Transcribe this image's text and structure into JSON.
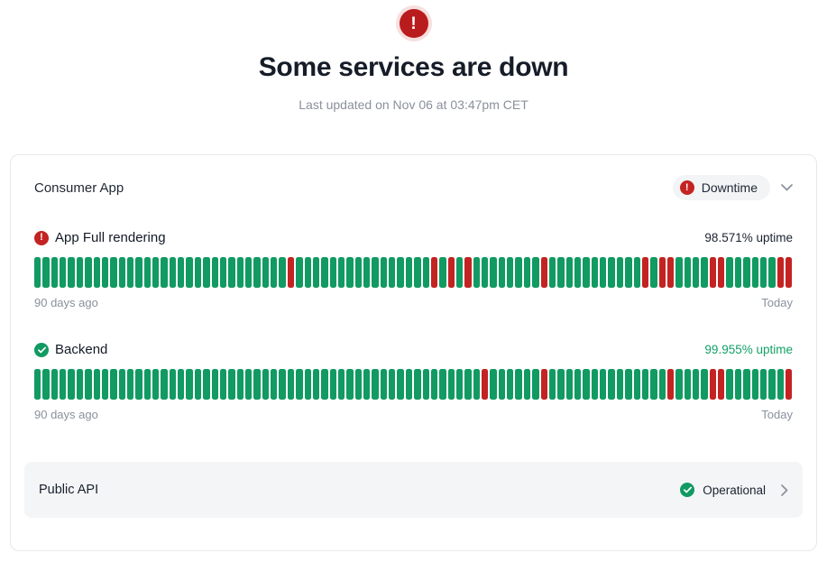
{
  "page": {
    "title": "Some services are down",
    "subtitle": "Last updated on Nov 06 at 03:47pm CET",
    "status_icon": "exclamation-circle-icon"
  },
  "colors": {
    "green": "#119a62",
    "green-text": "#12a165",
    "red": "#c32322",
    "alert-red": "#b91c1c",
    "alert-ring": "#f6e0df"
  },
  "card": {
    "group": {
      "name": "Consumer App",
      "badge_label": "Downtime",
      "badge_icon": "exclamation-circle-icon",
      "chevron": "chevron-down-icon"
    },
    "services": [
      {
        "name": "App Full rendering",
        "status": "down",
        "status_icon": "exclamation-circle-icon",
        "uptime_label": "98.571% uptime",
        "left_label": "90 days ago",
        "right_label": "Today",
        "days": 90,
        "down_indices": [
          30,
          47,
          49,
          51,
          60,
          72,
          74,
          75,
          80,
          81,
          88,
          89
        ]
      },
      {
        "name": "Backend",
        "status": "up",
        "status_icon": "check-circle-icon",
        "uptime_label": "99.955% uptime",
        "left_label": "90 days ago",
        "right_label": "Today",
        "days": 90,
        "down_indices": [
          53,
          60,
          75,
          80,
          81,
          89
        ]
      }
    ],
    "footer_service": {
      "name": "Public API",
      "status_label": "Operational",
      "status_icon": "check-circle-icon",
      "chevron": "chevron-right-icon"
    }
  }
}
